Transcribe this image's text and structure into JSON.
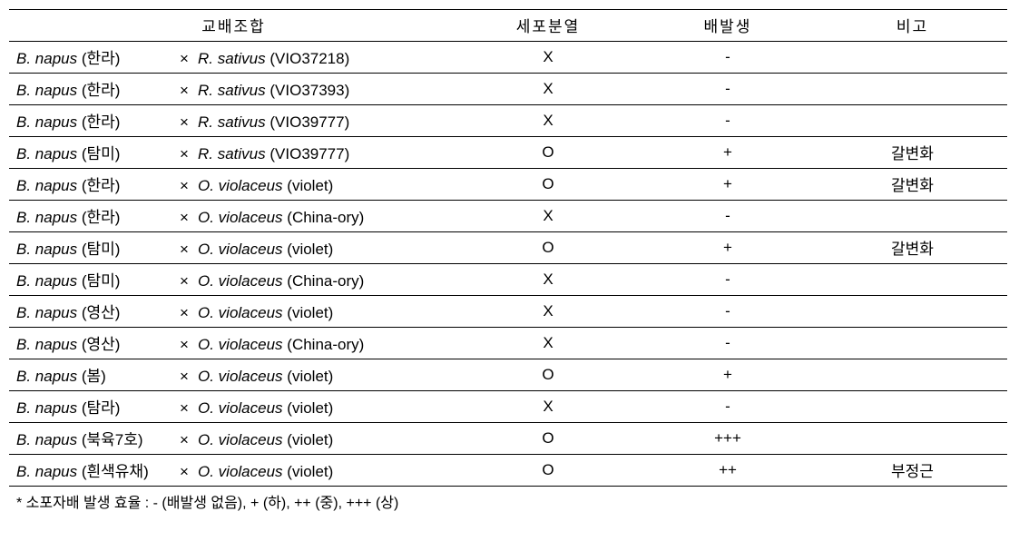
{
  "table": {
    "headers": {
      "cross": "교배조합",
      "division": "세포분열",
      "embryo": "배발생",
      "note": "비고"
    },
    "rows": [
      {
        "p1_species": "B. napus",
        "p1_var": "(한라)",
        "p2_species": "R. sativus",
        "p2_var": "(VIO37218)",
        "division": "X",
        "embryo": "-",
        "note": ""
      },
      {
        "p1_species": "B. napus",
        "p1_var": "(한라)",
        "p2_species": "R. sativus",
        "p2_var": "(VIO37393)",
        "division": "X",
        "embryo": "-",
        "note": ""
      },
      {
        "p1_species": "B. napus",
        "p1_var": "(한라)",
        "p2_species": "R. sativus",
        "p2_var": "(VIO39777)",
        "division": "X",
        "embryo": "-",
        "note": ""
      },
      {
        "p1_species": "B. napus",
        "p1_var": "(탐미)",
        "p2_species": "R. sativus",
        "p2_var": "(VIO39777)",
        "division": "O",
        "embryo": "+",
        "note": "갈변화"
      },
      {
        "p1_species": "B. napus",
        "p1_var": "(한라)",
        "p2_species": "O. violaceus",
        "p2_var": "(violet)",
        "division": "O",
        "embryo": "+",
        "note": "갈변화"
      },
      {
        "p1_species": "B. napus",
        "p1_var": "(한라)",
        "p2_species": "O. violaceus",
        "p2_var": "(China-ory)",
        "division": "X",
        "embryo": "-",
        "note": ""
      },
      {
        "p1_species": "B. napus",
        "p1_var": "(탐미)",
        "p2_species": "O. violaceus",
        "p2_var": "(violet)",
        "division": "O",
        "embryo": "+",
        "note": "갈변화"
      },
      {
        "p1_species": "B. napus",
        "p1_var": "(탐미)",
        "p2_species": "O. violaceus",
        "p2_var": "(China-ory)",
        "division": "X",
        "embryo": "-",
        "note": ""
      },
      {
        "p1_species": "B. napus",
        "p1_var": "(영산)",
        "p2_species": "O. violaceus",
        "p2_var": "(violet)",
        "division": "X",
        "embryo": "-",
        "note": ""
      },
      {
        "p1_species": "B. napus",
        "p1_var": "(영산)",
        "p2_species": "O. violaceus",
        "p2_var": "(China-ory)",
        "division": "X",
        "embryo": "-",
        "note": ""
      },
      {
        "p1_species": "B. napus",
        "p1_var": "(봄)",
        "p2_species": "O. violaceus",
        "p2_var": "(violet)",
        "division": "O",
        "embryo": "+",
        "note": ""
      },
      {
        "p1_species": "B. napus",
        "p1_var": "(탐라)",
        "p2_species": "O. violaceus",
        "p2_var": "(violet)",
        "division": "X",
        "embryo": "-",
        "note": ""
      },
      {
        "p1_species": "B. napus",
        "p1_var": "(북육7호)",
        "p2_species": "O. violaceus",
        "p2_var": "(violet)",
        "division": "O",
        "embryo": "+++",
        "note": ""
      },
      {
        "p1_species": "B. napus",
        "p1_var": "(흰색유채)",
        "p2_species": "O. violaceus",
        "p2_var": "(violet)",
        "division": "O",
        "embryo": "++",
        "note": "부정근"
      }
    ]
  },
  "footnote": "* 소포자배 발생 효율 : - (배발생 없음), + (하), ++ (중), +++ (상)",
  "symbols": {
    "cross": "×"
  }
}
